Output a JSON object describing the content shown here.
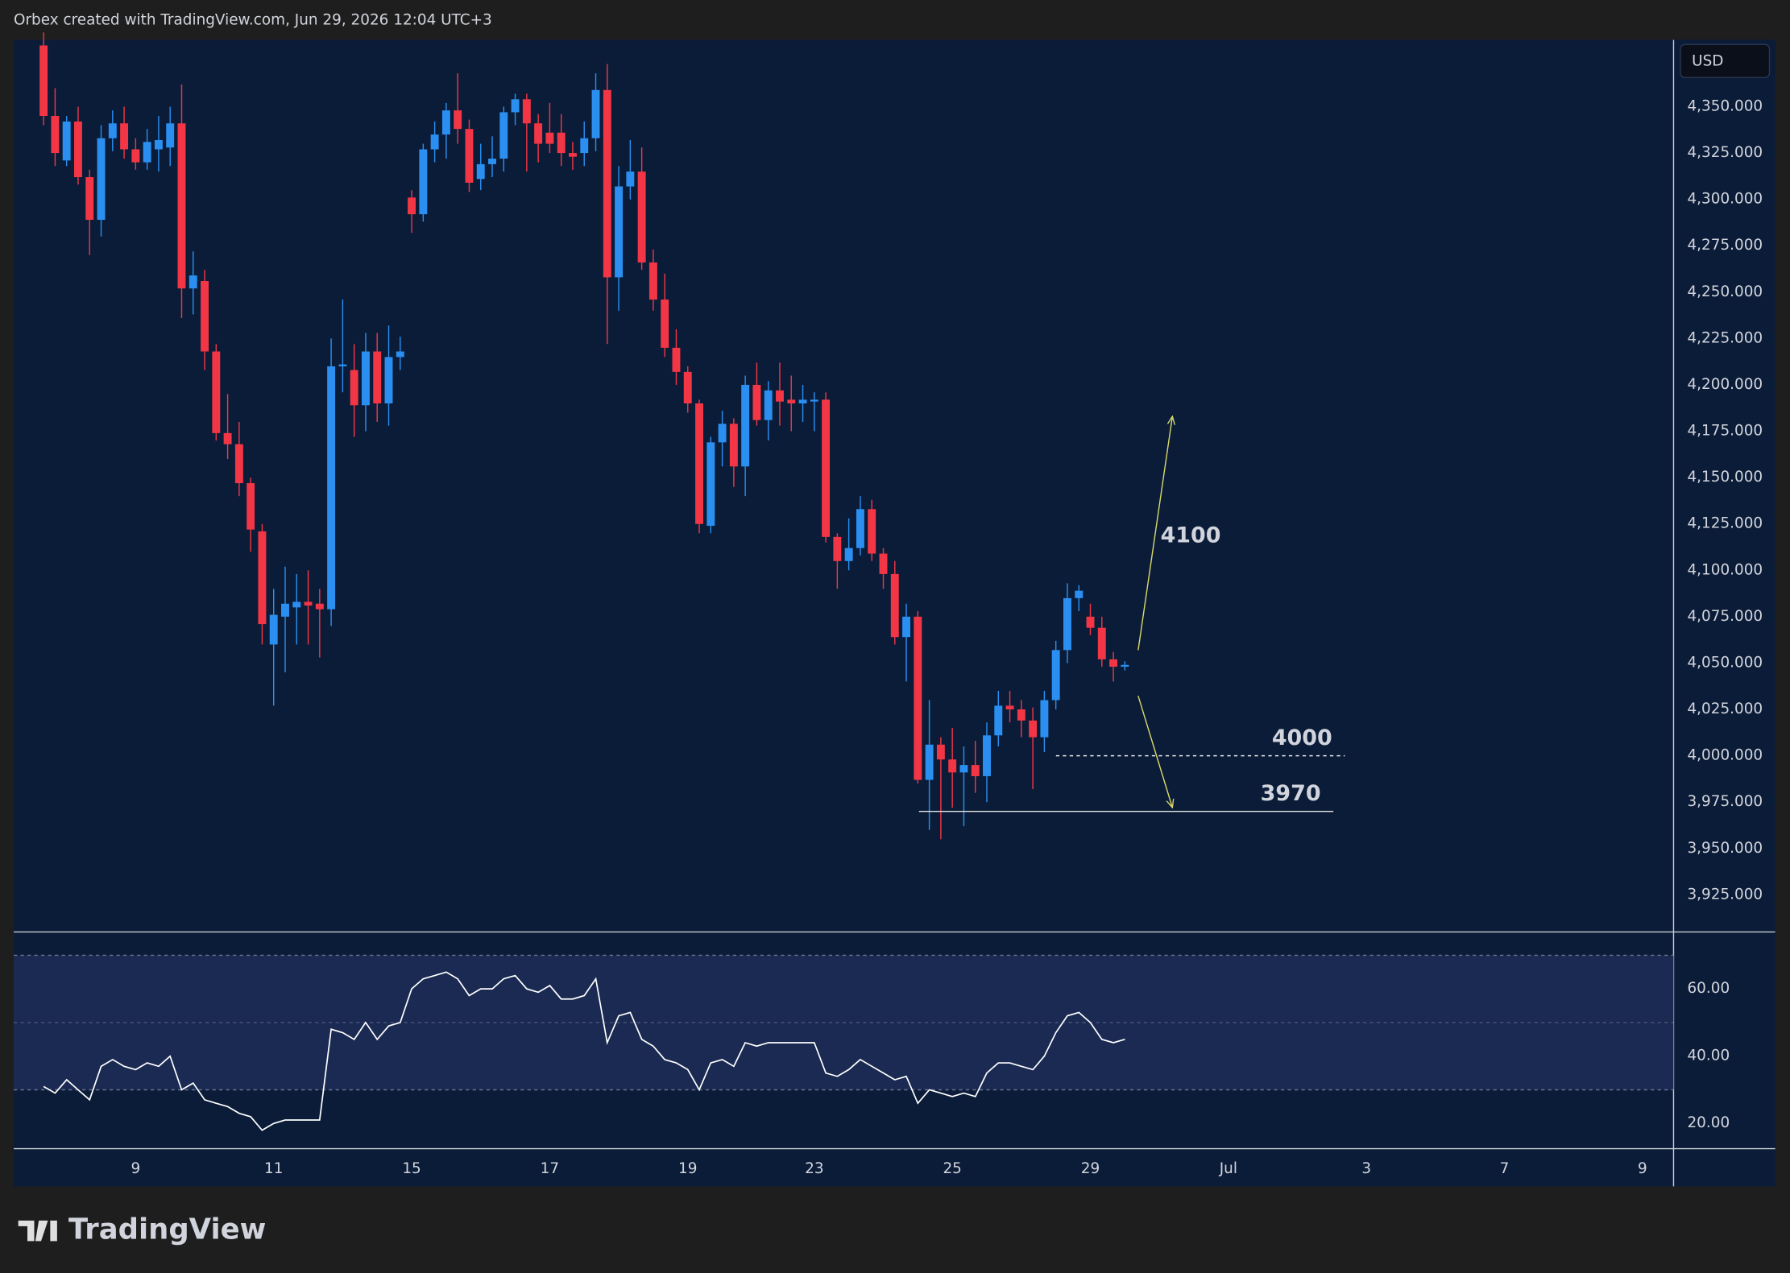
{
  "header": {
    "title": "Orbex created with TradingView.com, Jun 29, 2026 12:04 UTC+3"
  },
  "footer": {
    "logo": "TradingView"
  },
  "chart_data": [
    {
      "type": "candlestick",
      "currency": "USD",
      "up_color": "#2a8ff0",
      "down_color": "#f23645",
      "open": [
        4383,
        4345,
        4321,
        4342,
        4312,
        4289,
        4333,
        4341,
        4327,
        4320,
        4327,
        4328,
        4341,
        4252,
        4256,
        4218,
        4174,
        4168,
        4147,
        4121,
        4060,
        4075,
        4080,
        4083,
        4082,
        4079,
        4210,
        4208,
        4189,
        4218,
        4190,
        4215,
        4301,
        4292,
        4327,
        4335,
        4348,
        4338,
        4311,
        4319,
        4322,
        4347,
        4354,
        4341,
        4336,
        4336,
        4325,
        4325,
        4333,
        4359,
        4258,
        4307,
        4315,
        4266,
        4246,
        4220,
        4207,
        4190,
        4124,
        4169,
        4179,
        4156,
        4200,
        4181,
        4197,
        4192,
        4190,
        4191,
        4192,
        4118,
        4105,
        4112,
        4133,
        4109,
        4098,
        4064,
        4075,
        3987,
        4006,
        3998,
        3991,
        3995,
        3989,
        4011,
        4027,
        4025,
        4019,
        4010,
        4030,
        4057,
        4085,
        4075,
        4069,
        4052,
        4048
      ],
      "high": [
        4390,
        4360,
        4345,
        4350,
        4316,
        4340,
        4348,
        4350,
        4333,
        4338,
        4345,
        4350,
        4362,
        4272,
        4262,
        4222,
        4195,
        4180,
        4150,
        4125,
        4090,
        4102,
        4098,
        4100,
        4090,
        4225,
        4246,
        4222,
        4228,
        4228,
        4232,
        4226,
        4305,
        4330,
        4342,
        4352,
        4368,
        4343,
        4330,
        4334,
        4350,
        4357,
        4357,
        4346,
        4352,
        4346,
        4331,
        4342,
        4368,
        4373,
        4318,
        4332,
        4328,
        4273,
        4260,
        4230,
        4210,
        4192,
        4172,
        4186,
        4182,
        4205,
        4212,
        4202,
        4212,
        4205,
        4200,
        4196,
        4196,
        4120,
        4128,
        4140,
        4138,
        4112,
        4105,
        4082,
        4078,
        4030,
        4010,
        4015,
        4005,
        4008,
        4018,
        4035,
        4035,
        4030,
        4026,
        4035,
        4062,
        4093,
        4092,
        4082,
        4075,
        4056,
        4051
      ],
      "low": [
        4340,
        4318,
        4318,
        4308,
        4270,
        4280,
        4326,
        4322,
        4316,
        4316,
        4315,
        4318,
        4236,
        4238,
        4208,
        4170,
        4160,
        4140,
        4110,
        4060,
        4027,
        4045,
        4060,
        4060,
        4053,
        4070,
        4196,
        4172,
        4175,
        4180,
        4178,
        4208,
        4282,
        4288,
        4320,
        4322,
        4330,
        4304,
        4305,
        4312,
        4315,
        4340,
        4315,
        4320,
        4325,
        4318,
        4316,
        4318,
        4326,
        4222,
        4240,
        4300,
        4262,
        4240,
        4215,
        4200,
        4185,
        4120,
        4120,
        4156,
        4145,
        4140,
        4178,
        4170,
        4178,
        4175,
        4180,
        4175,
        4115,
        4090,
        4100,
        4108,
        4105,
        4090,
        4060,
        4040,
        3985,
        3960,
        3955,
        3972,
        3962,
        3980,
        3975,
        4005,
        4018,
        4010,
        3982,
        4002,
        4025,
        4050,
        4078,
        4065,
        4048,
        4040,
        4046
      ],
      "close": [
        4345,
        4325,
        4342,
        4312,
        4289,
        4333,
        4341,
        4327,
        4320,
        4331,
        4332,
        4341,
        4252,
        4259,
        4218,
        4174,
        4168,
        4147,
        4122,
        4071,
        4076,
        4082,
        4083,
        4081,
        4079,
        4210,
        4211,
        4189,
        4218,
        4190,
        4215,
        4218,
        4292,
        4327,
        4335,
        4348,
        4338,
        4309,
        4319,
        4322,
        4347,
        4354,
        4341,
        4330,
        4330,
        4325,
        4323,
        4333,
        4359,
        4258,
        4307,
        4315,
        4266,
        4246,
        4220,
        4207,
        4190,
        4125,
        4169,
        4179,
        4156,
        4200,
        4181,
        4197,
        4191,
        4190,
        4192,
        4192,
        4118,
        4105,
        4112,
        4133,
        4109,
        4098,
        4064,
        4075,
        3987,
        4006,
        3998,
        3991,
        3995,
        3989,
        4011,
        4027,
        4025,
        4019,
        4010,
        4030,
        4057,
        4085,
        4089,
        4069,
        4052,
        4048,
        4049
      ],
      "ylim": [
        3905,
        4386
      ],
      "yticks": [
        {
          "value": 4350,
          "label": "4,350.000"
        },
        {
          "value": 4325,
          "label": "4,325.000"
        },
        {
          "value": 4300,
          "label": "4,300.000"
        },
        {
          "value": 4275,
          "label": "4,275.000"
        },
        {
          "value": 4250,
          "label": "4,250.000"
        },
        {
          "value": 4225,
          "label": "4,225.000"
        },
        {
          "value": 4200,
          "label": "4,200.000"
        },
        {
          "value": 4175,
          "label": "4,175.000"
        },
        {
          "value": 4150,
          "label": "4,150.000"
        },
        {
          "value": 4125,
          "label": "4,125.000"
        },
        {
          "value": 4100,
          "label": "4,100.000"
        },
        {
          "value": 4075,
          "label": "4,075.000"
        },
        {
          "value": 4050,
          "label": "4,050.000"
        },
        {
          "value": 4025,
          "label": "4,025.000"
        },
        {
          "value": 4000,
          "label": "4,000.000"
        },
        {
          "value": 3975,
          "label": "3,975.000"
        },
        {
          "value": 3950,
          "label": "3,950.000"
        },
        {
          "value": 3925,
          "label": "3,925.000"
        }
      ],
      "xlim": [
        -2.6,
        141.7
      ],
      "xticks": [
        {
          "value": 8,
          "label": "9"
        },
        {
          "value": 20,
          "label": "11"
        },
        {
          "value": 32,
          "label": "15"
        },
        {
          "value": 44,
          "label": "17"
        },
        {
          "value": 56,
          "label": "19"
        },
        {
          "value": 67,
          "label": "23"
        },
        {
          "value": 79,
          "label": "25"
        },
        {
          "value": 91,
          "label": "29"
        },
        {
          "value": 103,
          "label": "Jul"
        },
        {
          "value": 115,
          "label": "3"
        },
        {
          "value": 127,
          "label": "7"
        },
        {
          "value": 139,
          "label": "9"
        }
      ],
      "levels": [
        {
          "value": 4000,
          "label": "4000",
          "style": "dashed"
        },
        {
          "value": 3970,
          "label": "3970",
          "style": "solid"
        }
      ],
      "annotations": [
        {
          "value": 4100,
          "label": "4100"
        }
      ]
    },
    {
      "type": "line",
      "color": "#ffffff",
      "values": [
        31,
        29,
        33,
        30,
        27,
        37,
        39,
        37,
        36,
        38,
        37,
        40,
        30,
        32,
        27,
        26,
        25,
        23,
        22,
        18,
        20,
        21,
        21,
        21,
        21,
        48,
        47,
        45,
        50,
        45,
        49,
        50,
        60,
        63,
        64,
        65,
        63,
        58,
        60,
        60,
        63,
        64,
        60,
        59,
        61,
        57,
        57,
        58,
        63,
        44,
        52,
        53,
        45,
        43,
        39,
        38,
        36,
        30,
        38,
        39,
        37,
        44,
        43,
        44,
        44,
        44,
        44,
        44,
        35,
        34,
        36,
        39,
        37,
        35,
        33,
        34,
        26,
        30,
        29,
        28,
        29,
        28,
        35,
        38,
        38,
        37,
        36,
        40,
        47,
        52,
        53,
        50,
        45,
        44,
        45
      ],
      "ylim": [
        12.5,
        76.6
      ],
      "yticks": [
        {
          "value": 60,
          "label": "60.00"
        },
        {
          "value": 40,
          "label": "40.00"
        },
        {
          "value": 20,
          "label": "20.00"
        }
      ],
      "band": [
        30,
        70
      ],
      "midline": 50
    }
  ]
}
